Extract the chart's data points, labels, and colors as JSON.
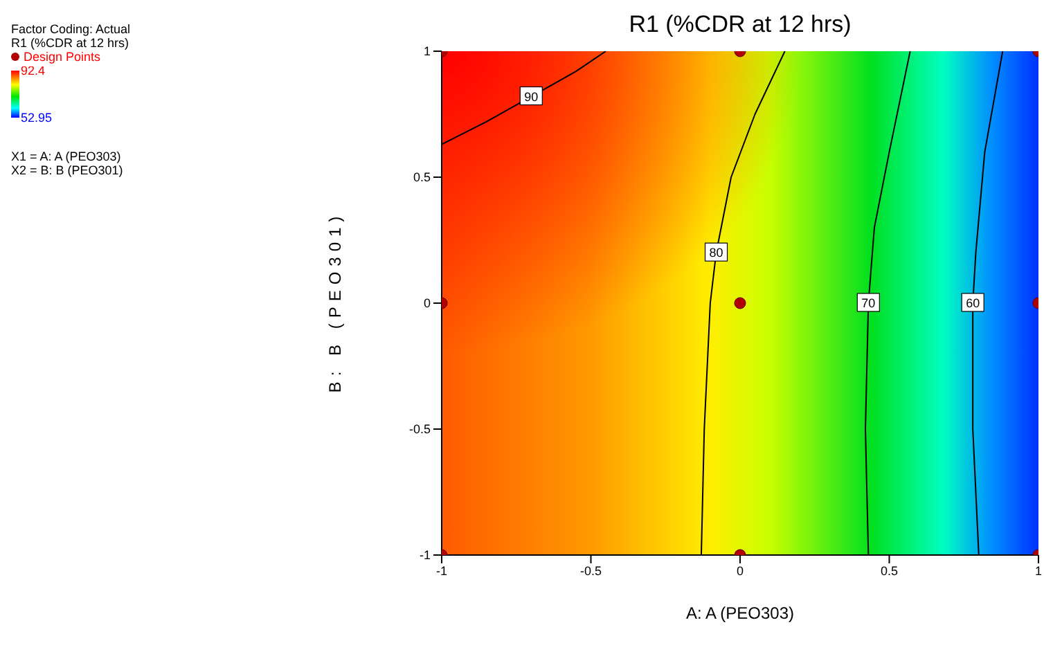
{
  "chart_data": {
    "type": "line",
    "title": "R1 (%CDR at 12 hrs)",
    "xlabel": "A: A (PEO303)",
    "ylabel": "B: B (PEO301)",
    "annotations": [
      "Factor Coding: Actual",
      "R1 (%CDR at 12 hrs)",
      "X1 = A: A (PEO303)",
      "X2 = B: B (PEO301)"
    ],
    "xlim": [
      -1,
      1
    ],
    "ylim": [
      -1,
      1
    ],
    "xticks": [
      -1,
      -0.5,
      0,
      0.5,
      1
    ],
    "yticks": [
      -1,
      -0.5,
      0,
      0.5,
      1
    ],
    "legend": "left",
    "clim": [
      52.95,
      92.4
    ],
    "cticks": [
      52.95,
      92.4
    ],
    "series": [
      {
        "name": "90",
        "color": "#000000",
        "x": [
          -1,
          -0.85,
          -0.7,
          -0.55,
          -0.45
        ],
        "values": [
          0.63,
          0.72,
          0.82,
          0.92,
          1
        ]
      },
      {
        "name": "80",
        "color": "#000000",
        "x": [
          0.15,
          0.05,
          -0.03,
          -0.08,
          -0.1,
          -0.12,
          -0.13
        ],
        "values": [
          1,
          0.75,
          0.5,
          0.2,
          0,
          -0.5,
          -1
        ]
      },
      {
        "name": "70",
        "color": "#000000",
        "x": [
          0.57,
          0.5,
          0.45,
          0.43,
          0.42,
          0.43
        ],
        "values": [
          1,
          0.6,
          0.3,
          0,
          -0.5,
          -1
        ]
      },
      {
        "name": "60",
        "color": "#000000",
        "x": [
          0.88,
          0.82,
          0.79,
          0.78,
          0.78,
          0.8
        ],
        "values": [
          1,
          0.6,
          0.2,
          0,
          -0.5,
          -1
        ]
      },
      {
        "type": "scatter",
        "name": "Design Points",
        "color": "#b00000",
        "marker": "circle",
        "x": [
          -1,
          0,
          1,
          -1,
          0,
          1,
          -1,
          0,
          1
        ],
        "values": [
          1,
          1,
          1,
          0,
          0,
          0,
          -1,
          -1,
          -1
        ]
      }
    ]
  }
}
